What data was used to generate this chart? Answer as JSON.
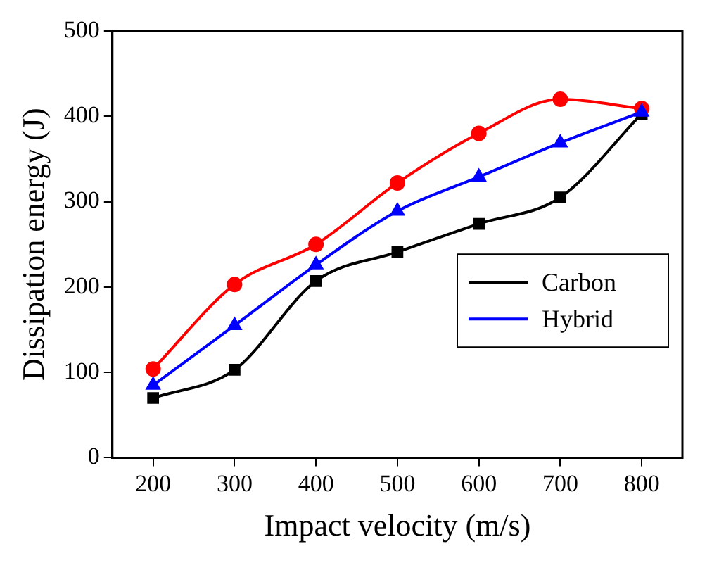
{
  "chart_data": {
    "type": "line",
    "xlabel": "Impact velocity (m/s)",
    "ylabel": "Dissipation energy (J)",
    "x": [
      200,
      300,
      400,
      500,
      600,
      700,
      800
    ],
    "xlim": [
      150,
      850
    ],
    "xticks": [
      200,
      300,
      400,
      500,
      600,
      700,
      800
    ],
    "ylim": [
      0,
      500
    ],
    "yticks": [
      0,
      100,
      200,
      300,
      400,
      500
    ],
    "series": [
      {
        "name": "Carbon",
        "color": "#000000",
        "marker": "square",
        "values": [
          70,
          103,
          207,
          241,
          274,
          305,
          403
        ]
      },
      {
        "color": "#ff0000",
        "marker": "circle",
        "values": [
          104,
          203,
          250,
          322,
          380,
          420,
          409
        ]
      },
      {
        "name": "Hybrid",
        "color": "#0000ff",
        "marker": "triangle",
        "values": [
          85,
          155,
          226,
          289,
          329,
          369,
          405
        ]
      }
    ],
    "grid": false,
    "legend": "right"
  }
}
